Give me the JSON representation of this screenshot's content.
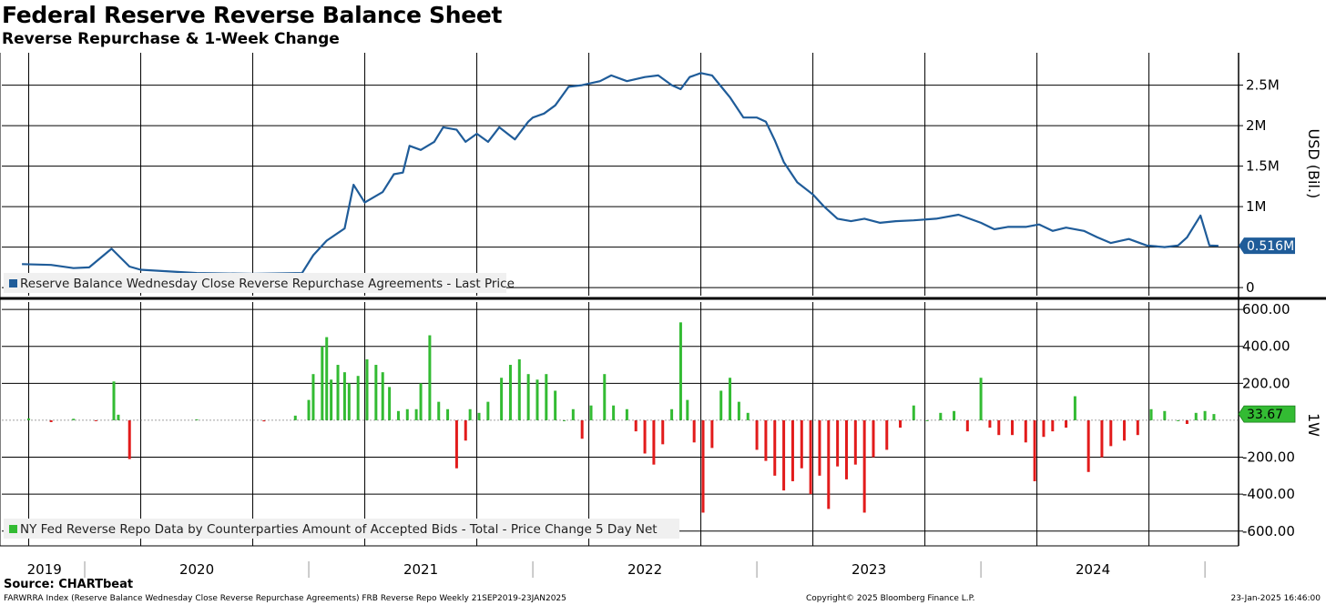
{
  "header": {
    "title": "Federal Reserve Reverse Balance Sheet",
    "subtitle": "Reverse Repurchase & 1-Week Change"
  },
  "footer": {
    "source": "Source: CHARTbeat",
    "description": "FARWRRA Index (Reserve Balance Wednesday Close Reverse Repurchase Agreements) FRB Reverse Repo  Weekly 21SEP2019-23JAN2025",
    "copyright": "Copyright© 2025 Bloomberg Finance L.P.",
    "timestamp": "23-Jan-2025 16:46:00"
  },
  "colors": {
    "line": "#1f5c99",
    "positive_bar": "#33bb33",
    "negative_bar": "#e21b1b",
    "grid": "#000000",
    "legend_bg": "#f0f0f0"
  },
  "chart_data": [
    {
      "type": "line",
      "name": "Reserve Balance Wednesday Close Reverse Repurchase Agreements - Last Price",
      "legend": "Reserve Balance Wednesday Close Reverse Repurchase Agreements - Last Price",
      "ylabel": "USD (Bil.)",
      "ylim": [
        -0.1,
        2.9
      ],
      "y_ticks": [
        0,
        0.5,
        1,
        1.5,
        2,
        2.5
      ],
      "y_tick_labels": [
        "0",
        "",
        "1M",
        "1.5M",
        "2M",
        "2.5M"
      ],
      "last_value": 0.516,
      "last_value_label": "0.516M",
      "x": [
        2019.72,
        2019.85,
        2019.95,
        2020.02,
        2020.12,
        2020.2,
        2020.25,
        2020.5,
        2020.75,
        2020.97,
        2021.02,
        2021.08,
        2021.16,
        2021.2,
        2021.25,
        2021.33,
        2021.38,
        2021.42,
        2021.45,
        2021.5,
        2021.56,
        2021.6,
        2021.66,
        2021.7,
        2021.75,
        2021.8,
        2021.85,
        2021.92,
        2021.98,
        2022.0,
        2022.05,
        2022.1,
        2022.16,
        2022.22,
        2022.3,
        2022.35,
        2022.42,
        2022.5,
        2022.56,
        2022.62,
        2022.66,
        2022.7,
        2022.75,
        2022.8,
        2022.85,
        2022.88,
        2022.94,
        2023.0,
        2023.04,
        2023.08,
        2023.12,
        2023.18,
        2023.25,
        2023.3,
        2023.36,
        2023.42,
        2023.48,
        2023.55,
        2023.62,
        2023.7,
        2023.8,
        2023.9,
        2024.0,
        2024.06,
        2024.12,
        2024.2,
        2024.26,
        2024.32,
        2024.38,
        2024.46,
        2024.52,
        2024.58,
        2024.66,
        2024.74,
        2024.82,
        2024.88,
        2024.92,
        2024.98,
        2025.02,
        2025.06
      ],
      "y": [
        0.29,
        0.28,
        0.24,
        0.25,
        0.48,
        0.26,
        0.22,
        0.18,
        0.17,
        0.18,
        0.4,
        0.58,
        0.73,
        1.27,
        1.05,
        1.18,
        1.4,
        1.42,
        1.75,
        1.7,
        1.8,
        1.98,
        1.95,
        1.8,
        1.9,
        1.8,
        1.98,
        1.83,
        2.05,
        2.1,
        2.15,
        2.25,
        2.48,
        2.5,
        2.55,
        2.62,
        2.55,
        2.6,
        2.62,
        2.5,
        2.45,
        2.6,
        2.65,
        2.62,
        2.45,
        2.35,
        2.1,
        2.1,
        2.05,
        1.82,
        1.55,
        1.3,
        1.15,
        1.0,
        0.85,
        0.82,
        0.85,
        0.8,
        0.82,
        0.83,
        0.85,
        0.9,
        0.8,
        0.72,
        0.75,
        0.75,
        0.78,
        0.7,
        0.74,
        0.7,
        0.62,
        0.55,
        0.6,
        0.52,
        0.5,
        0.52,
        0.62,
        0.89,
        0.52,
        0.516
      ]
    },
    {
      "type": "bar",
      "name": "NY Fed Reverse Repo Data by Counterparties Amount of Accepted Bids - Total - Price Change 5 Day Net",
      "legend": "NY Fed Reverse Repo Data by Counterparties Amount of Accepted Bids - Total - Price Change 5 Day Net",
      "ylabel": "1W",
      "ylim": [
        -680,
        640
      ],
      "y_ticks": [
        600,
        400,
        200,
        -200,
        -400,
        -600
      ],
      "y_tick_labels": [
        "600.00",
        "400.00",
        "200.00",
        "-200.00",
        "-400.00",
        "-600.00"
      ],
      "last_value": 33.67,
      "last_value_label": "33.67",
      "x": [
        2019.75,
        2019.85,
        2019.95,
        2020.05,
        2020.13,
        2020.15,
        2020.2,
        2020.5,
        2020.8,
        2020.94,
        2021.0,
        2021.02,
        2021.06,
        2021.08,
        2021.1,
        2021.13,
        2021.16,
        2021.18,
        2021.22,
        2021.26,
        2021.3,
        2021.33,
        2021.36,
        2021.4,
        2021.44,
        2021.48,
        2021.5,
        2021.54,
        2021.58,
        2021.62,
        2021.66,
        2021.7,
        2021.72,
        2021.76,
        2021.8,
        2021.86,
        2021.9,
        2021.94,
        2021.98,
        2022.02,
        2022.06,
        2022.1,
        2022.14,
        2022.18,
        2022.22,
        2022.26,
        2022.32,
        2022.36,
        2022.42,
        2022.46,
        2022.5,
        2022.54,
        2022.58,
        2022.62,
        2022.66,
        2022.69,
        2022.72,
        2022.76,
        2022.8,
        2022.84,
        2022.88,
        2022.92,
        2022.96,
        2023.0,
        2023.04,
        2023.08,
        2023.12,
        2023.16,
        2023.2,
        2023.24,
        2023.28,
        2023.32,
        2023.36,
        2023.4,
        2023.44,
        2023.48,
        2023.52,
        2023.58,
        2023.64,
        2023.7,
        2023.76,
        2023.82,
        2023.88,
        2023.94,
        2024.0,
        2024.04,
        2024.08,
        2024.14,
        2024.2,
        2024.24,
        2024.28,
        2024.32,
        2024.38,
        2024.42,
        2024.48,
        2024.54,
        2024.58,
        2024.64,
        2024.7,
        2024.76,
        2024.82,
        2024.88,
        2024.92,
        2024.96,
        2025.0,
        2025.04
      ],
      "y": [
        10,
        -10,
        8,
        -5,
        210,
        30,
        -210,
        5,
        -6,
        25,
        110,
        250,
        400,
        450,
        220,
        300,
        260,
        200,
        240,
        330,
        300,
        260,
        180,
        50,
        60,
        60,
        200,
        460,
        100,
        60,
        -260,
        -110,
        60,
        40,
        100,
        230,
        300,
        330,
        250,
        220,
        250,
        160,
        0,
        60,
        -100,
        80,
        250,
        80,
        60,
        -60,
        -180,
        -240,
        -130,
        60,
        530,
        110,
        -120,
        -500,
        -150,
        160,
        230,
        100,
        40,
        -160,
        -220,
        -300,
        -380,
        -330,
        -260,
        -400,
        -300,
        -480,
        -250,
        -320,
        -240,
        -500,
        -200,
        -160,
        -40,
        80,
        0,
        40,
        50,
        -60,
        230,
        -40,
        -80,
        -80,
        -120,
        -330,
        -90,
        -60,
        -40,
        130,
        -280,
        -200,
        -140,
        -110,
        -80,
        60,
        50,
        0,
        -20,
        40,
        50,
        33.67
      ]
    }
  ],
  "x_axis": {
    "labels": [
      "2019",
      "2020",
      "2021",
      "2022",
      "2023",
      "2024"
    ]
  }
}
